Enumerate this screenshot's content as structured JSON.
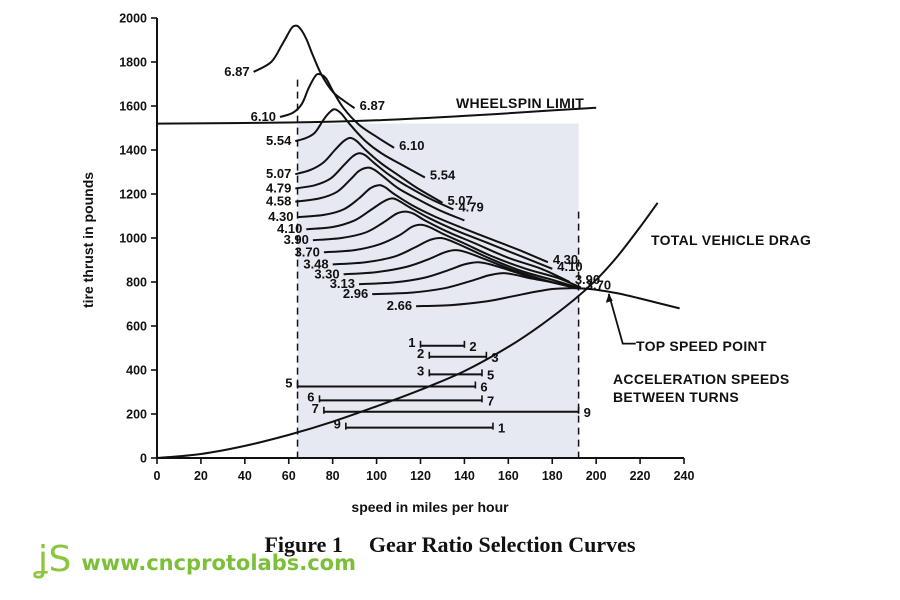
{
  "figure": {
    "caption_number": "Figure 1",
    "caption_title": "Gear Ratio Selection Curves"
  },
  "watermark": {
    "logo_text": "JS",
    "url": "www.cncprotolabs.com",
    "color": "#7cc03a"
  },
  "chart_data": {
    "type": "line",
    "xlabel": "speed in miles per hour",
    "ylabel": "tire thrust in pounds",
    "xlim": [
      0,
      240
    ],
    "ylim": [
      0,
      2000
    ],
    "xticks": [
      "0",
      "20",
      "40",
      "60",
      "80",
      "100",
      "120",
      "140",
      "160",
      "180",
      "200",
      "220",
      "240"
    ],
    "yticks": [
      "0",
      "200",
      "400",
      "600",
      "800",
      "1000",
      "1200",
      "1400",
      "1600",
      "1800",
      "2000"
    ],
    "grid": false,
    "shaded_region": {
      "x": [
        64,
        192
      ],
      "y": [
        0,
        1520
      ],
      "color": "#e6e8f2"
    },
    "gear_curves": [
      {
        "ratio": "6.87",
        "label_left": "6.87",
        "label_right": "6.87",
        "points": [
          [
            44,
            1755
          ],
          [
            52,
            1800
          ],
          [
            57,
            1880
          ],
          [
            61,
            1950
          ],
          [
            63,
            1965
          ],
          [
            65,
            1955
          ],
          [
            68,
            1905
          ],
          [
            71,
            1830
          ],
          [
            75,
            1740
          ],
          [
            80,
            1665
          ],
          [
            85,
            1625
          ],
          [
            90,
            1590
          ]
        ]
      },
      {
        "ratio": "6.10",
        "label_left": "6.10",
        "label_right": "6.10",
        "points": [
          [
            56,
            1550
          ],
          [
            62,
            1570
          ],
          [
            66,
            1610
          ],
          [
            69,
            1680
          ],
          [
            72,
            1735
          ],
          [
            74,
            1745
          ],
          [
            77,
            1725
          ],
          [
            80,
            1670
          ],
          [
            85,
            1590
          ],
          [
            92,
            1515
          ],
          [
            100,
            1460
          ],
          [
            108,
            1410
          ]
        ]
      },
      {
        "ratio": "5.54",
        "label_left": "5.54",
        "label_right": "5.54",
        "points": [
          [
            63,
            1440
          ],
          [
            68,
            1455
          ],
          [
            72,
            1480
          ],
          [
            76,
            1540
          ],
          [
            79,
            1575
          ],
          [
            81,
            1585
          ],
          [
            84,
            1565
          ],
          [
            88,
            1515
          ],
          [
            95,
            1440
          ],
          [
            103,
            1380
          ],
          [
            112,
            1330
          ],
          [
            122,
            1275
          ]
        ]
      },
      {
        "ratio": "5.07",
        "label_left": "5.07",
        "label_right": "5.07",
        "points": [
          [
            63,
            1290
          ],
          [
            70,
            1310
          ],
          [
            76,
            1345
          ],
          [
            81,
            1400
          ],
          [
            85,
            1440
          ],
          [
            88,
            1455
          ],
          [
            91,
            1440
          ],
          [
            95,
            1400
          ],
          [
            102,
            1340
          ],
          [
            110,
            1285
          ],
          [
            118,
            1230
          ],
          [
            130,
            1160
          ]
        ]
      },
      {
        "ratio": "4.79",
        "label_left": "4.79",
        "label_right": "4.79",
        "points": [
          [
            63,
            1225
          ],
          [
            72,
            1240
          ],
          [
            79,
            1270
          ],
          [
            85,
            1330
          ],
          [
            89,
            1370
          ],
          [
            92,
            1385
          ],
          [
            95,
            1375
          ],
          [
            99,
            1340
          ],
          [
            106,
            1285
          ],
          [
            114,
            1235
          ],
          [
            124,
            1180
          ],
          [
            135,
            1130
          ]
        ]
      },
      {
        "ratio": "4.58",
        "label_left": "4.58",
        "points": [
          [
            63,
            1165
          ],
          [
            74,
            1180
          ],
          [
            82,
            1210
          ],
          [
            88,
            1265
          ],
          [
            92,
            1305
          ],
          [
            96,
            1320
          ],
          [
            99,
            1310
          ],
          [
            103,
            1280
          ],
          [
            110,
            1225
          ],
          [
            120,
            1170
          ],
          [
            130,
            1120
          ],
          [
            140,
            1080
          ]
        ]
      },
      {
        "ratio": "4.30",
        "label_left": "4.30",
        "label_right": "4.30",
        "points": [
          [
            64,
            1095
          ],
          [
            76,
            1105
          ],
          [
            85,
            1130
          ],
          [
            92,
            1180
          ],
          [
            97,
            1225
          ],
          [
            101,
            1240
          ],
          [
            104,
            1230
          ],
          [
            108,
            1200
          ],
          [
            116,
            1150
          ],
          [
            126,
            1100
          ],
          [
            138,
            1050
          ],
          [
            152,
            995
          ],
          [
            165,
            945
          ],
          [
            178,
            890
          ]
        ]
      },
      {
        "ratio": "4.10",
        "label_left": "4.10",
        "label_right": "4.10",
        "points": [
          [
            68,
            1040
          ],
          [
            80,
            1050
          ],
          [
            90,
            1080
          ],
          [
            97,
            1125
          ],
          [
            103,
            1165
          ],
          [
            107,
            1180
          ],
          [
            110,
            1170
          ],
          [
            115,
            1140
          ],
          [
            124,
            1090
          ],
          [
            136,
            1035
          ],
          [
            150,
            980
          ],
          [
            165,
            920
          ],
          [
            180,
            860
          ]
        ]
      },
      {
        "ratio": "3.90",
        "label_left": "3.90",
        "label_right": "3.90",
        "points": [
          [
            71,
            990
          ],
          [
            84,
            1000
          ],
          [
            95,
            1025
          ],
          [
            103,
            1070
          ],
          [
            109,
            1110
          ],
          [
            113,
            1120
          ],
          [
            117,
            1110
          ],
          [
            122,
            1080
          ],
          [
            132,
            1030
          ],
          [
            145,
            975
          ],
          [
            160,
            910
          ],
          [
            175,
            860
          ],
          [
            188,
            800
          ]
        ]
      },
      {
        "ratio": "3.70",
        "label_left": "3.70",
        "label_right": "3.70",
        "points": [
          [
            76,
            935
          ],
          [
            90,
            945
          ],
          [
            101,
            970
          ],
          [
            110,
            1010
          ],
          [
            116,
            1050
          ],
          [
            120,
            1060
          ],
          [
            124,
            1050
          ],
          [
            130,
            1020
          ],
          [
            140,
            975
          ],
          [
            153,
            915
          ],
          [
            168,
            860
          ],
          [
            182,
            820
          ],
          [
            193,
            775
          ]
        ]
      },
      {
        "ratio": "3.48",
        "label_left": "3.48",
        "points": [
          [
            80,
            880
          ],
          [
            95,
            890
          ],
          [
            108,
            915
          ],
          [
            117,
            955
          ],
          [
            124,
            990
          ],
          [
            129,
            1000
          ],
          [
            133,
            990
          ],
          [
            140,
            960
          ],
          [
            152,
            905
          ],
          [
            166,
            850
          ],
          [
            180,
            810
          ],
          [
            193,
            770
          ]
        ]
      },
      {
        "ratio": "3.30",
        "label_left": "3.30",
        "points": [
          [
            85,
            835
          ],
          [
            100,
            845
          ],
          [
            114,
            870
          ],
          [
            124,
            905
          ],
          [
            131,
            935
          ],
          [
            136,
            945
          ],
          [
            141,
            935
          ],
          [
            149,
            905
          ],
          [
            162,
            855
          ],
          [
            176,
            810
          ],
          [
            192,
            770
          ]
        ]
      },
      {
        "ratio": "3.13",
        "label_left": "3.13",
        "points": [
          [
            92,
            790
          ],
          [
            108,
            798
          ],
          [
            122,
            820
          ],
          [
            133,
            855
          ],
          [
            140,
            880
          ],
          [
            146,
            890
          ],
          [
            151,
            882
          ],
          [
            160,
            855
          ],
          [
            173,
            815
          ],
          [
            192,
            770
          ]
        ]
      },
      {
        "ratio": "2.96",
        "label_left": "2.96",
        "points": [
          [
            98,
            745
          ],
          [
            116,
            752
          ],
          [
            131,
            772
          ],
          [
            143,
            805
          ],
          [
            151,
            830
          ],
          [
            157,
            840
          ],
          [
            162,
            835
          ],
          [
            171,
            815
          ],
          [
            182,
            795
          ],
          [
            193,
            772
          ]
        ]
      },
      {
        "ratio": "2.66",
        "label_left": "2.66",
        "points": [
          [
            118,
            690
          ],
          [
            134,
            695
          ],
          [
            150,
            712
          ],
          [
            162,
            735
          ],
          [
            172,
            755
          ],
          [
            180,
            768
          ],
          [
            188,
            772
          ],
          [
            195,
            770
          ]
        ]
      }
    ],
    "drag_curve": {
      "label": "TOTAL VEHICLE DRAG",
      "points": [
        [
          0,
          0
        ],
        [
          20,
          18
        ],
        [
          40,
          55
        ],
        [
          60,
          105
        ],
        [
          80,
          165
        ],
        [
          100,
          235
        ],
        [
          120,
          310
        ],
        [
          140,
          395
        ],
        [
          160,
          505
        ],
        [
          175,
          605
        ],
        [
          190,
          720
        ],
        [
          200,
          810
        ],
        [
          210,
          920
        ],
        [
          220,
          1050
        ],
        [
          228,
          1160
        ]
      ]
    },
    "top_speed_curve": {
      "points": [
        [
          192,
          772
        ],
        [
          200,
          765
        ],
        [
          210,
          748
        ],
        [
          220,
          725
        ],
        [
          230,
          700
        ],
        [
          238,
          680
        ]
      ]
    },
    "top_speed_point": {
      "label": "TOP SPEED POINT",
      "x": 203,
      "y": 765
    },
    "wheelspin_limit": {
      "label": "WHEELSPIN LIMIT",
      "points": [
        [
          0,
          1520
        ],
        [
          60,
          1525
        ],
        [
          100,
          1535
        ],
        [
          140,
          1555
        ],
        [
          180,
          1580
        ],
        [
          200,
          1592
        ]
      ]
    },
    "vertical_dashed_lines": [
      64,
      192
    ],
    "acceleration_speeds": {
      "label_line1": "ACCELERATION SPEEDS",
      "label_line2": "BETWEEN TURNS",
      "ranges": [
        {
          "from_label": "1",
          "to_label": "2",
          "x_start": 120,
          "x_end": 140,
          "y": 510
        },
        {
          "from_label": "2",
          "to_label": "3",
          "x_start": 124,
          "x_end": 150,
          "y": 460
        },
        {
          "from_label": "3",
          "to_label": "5",
          "x_start": 124,
          "x_end": 148,
          "y": 380
        },
        {
          "from_label": "5",
          "to_label": "6",
          "x_start": 64,
          "x_end": 145,
          "y": 325
        },
        {
          "from_label": "6",
          "to_label": "7",
          "x_start": 74,
          "x_end": 148,
          "y": 262
        },
        {
          "from_label": "7",
          "to_label": "9",
          "x_start": 76,
          "x_end": 192,
          "y": 210
        },
        {
          "from_label": "9",
          "to_label": "1",
          "x_start": 86,
          "x_end": 153,
          "y": 138
        }
      ]
    }
  }
}
